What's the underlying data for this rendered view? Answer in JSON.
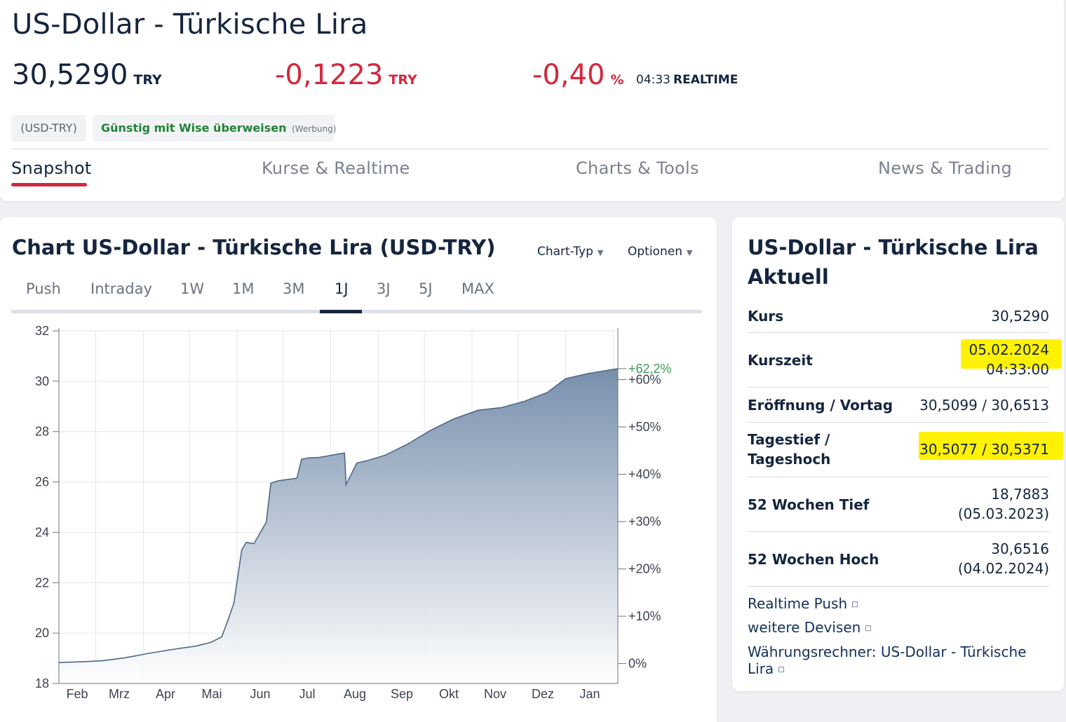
{
  "page": {
    "title": "US-Dollar - Türkische Lira",
    "price": "30,5290",
    "price_unit": "TRY",
    "change": "-0,1223",
    "change_unit": "TRY",
    "change_pct": "-0,40",
    "pct_unit": "%",
    "time": "04:33",
    "time_label": "REALTIME",
    "symbol": "(USD-TRY)",
    "ad_text": "Günstig mit Wise überweisen",
    "ad_label": "(Werbung)"
  },
  "tabs": [
    "Snapshot",
    "Kurse & Realtime",
    "Charts & Tools",
    "News & Trading"
  ],
  "chart_panel": {
    "title": "Chart US-Dollar - Türkische Lira (USD-TRY)",
    "chart_type_label": "Chart-Typ",
    "options_label": "Optionen",
    "periods": [
      "Push",
      "Intraday",
      "1W",
      "1M",
      "3M",
      "1J",
      "3J",
      "5J",
      "MAX"
    ],
    "active_period": "1J"
  },
  "chart_data": {
    "type": "area",
    "y_ticks": [
      18,
      20,
      22,
      24,
      26,
      28,
      30,
      32
    ],
    "ylim": [
      18,
      32
    ],
    "pct_ticks": [
      "0%",
      "+10%",
      "+20%",
      "+30%",
      "+40%",
      "+50%",
      "+60%"
    ],
    "pct_values": [
      0,
      10,
      20,
      30,
      40,
      50,
      60
    ],
    "pct_base": 18.79,
    "end_label": "+62,2%",
    "x_ticks": [
      "Feb",
      "Mrz",
      "Apr",
      "Mai",
      "Jun",
      "Jul",
      "Aug",
      "Sep",
      "Okt",
      "Nov",
      "Dez",
      "Jan"
    ],
    "x": [
      "2023-02-05",
      "2023-02-20",
      "2023-03-05",
      "2023-03-20",
      "2023-04-05",
      "2023-04-20",
      "2023-05-05",
      "2023-05-15",
      "2023-05-22",
      "2023-05-26",
      "2023-05-30",
      "2023-06-04",
      "2023-06-07",
      "2023-06-12",
      "2023-06-20",
      "2023-06-23",
      "2023-06-28",
      "2023-07-10",
      "2023-07-13",
      "2023-07-17",
      "2023-07-25",
      "2023-08-05",
      "2023-08-10",
      "2023-08-11",
      "2023-08-18",
      "2023-08-25",
      "2023-09-05",
      "2023-09-20",
      "2023-10-05",
      "2023-10-20",
      "2023-11-05",
      "2023-11-20",
      "2023-12-05",
      "2023-12-20",
      "2024-01-01",
      "2024-01-15",
      "2024-02-04"
    ],
    "values": [
      18.83,
      18.86,
      18.9,
      19.02,
      19.2,
      19.35,
      19.48,
      19.63,
      19.85,
      20.5,
      21.2,
      23.3,
      23.6,
      23.55,
      24.4,
      25.95,
      26.05,
      26.15,
      26.9,
      26.95,
      26.98,
      27.1,
      27.15,
      25.9,
      26.75,
      26.85,
      27.05,
      27.5,
      28.05,
      28.5,
      28.85,
      28.95,
      29.2,
      29.55,
      30.1,
      30.3,
      30.5
    ]
  },
  "details": {
    "title": "US-Dollar - Türkische Lira Aktuell",
    "rows": [
      {
        "label": "Kurs",
        "value": "30,5290"
      },
      {
        "label": "Kurszeit",
        "value": "05.02.2024",
        "value2": "04:33:00"
      },
      {
        "label": "Eröffnung / Vortag",
        "value": "30,5099 / 30,6513"
      },
      {
        "label": "Tagestief /",
        "label2": "Tageshoch",
        "value": "30,5077 / 30,5371"
      },
      {
        "label": "52 Wochen Tief",
        "value": "18,7883",
        "value2": "(05.03.2023)"
      },
      {
        "label": "52 Wochen Hoch",
        "value": "30,6516",
        "value2": "(04.02.2024)"
      }
    ],
    "links": [
      "Realtime Push",
      "weitere Devisen",
      "Währungsrechner: US-Dollar - Türkische",
      "Lira"
    ],
    "highlight_color": "#fff200"
  },
  "colors": {
    "accent_red": "#d2283c",
    "navy": "#15253f",
    "green": "#238237",
    "line": "#4f6886",
    "pct_green": "#3a9a5a"
  }
}
